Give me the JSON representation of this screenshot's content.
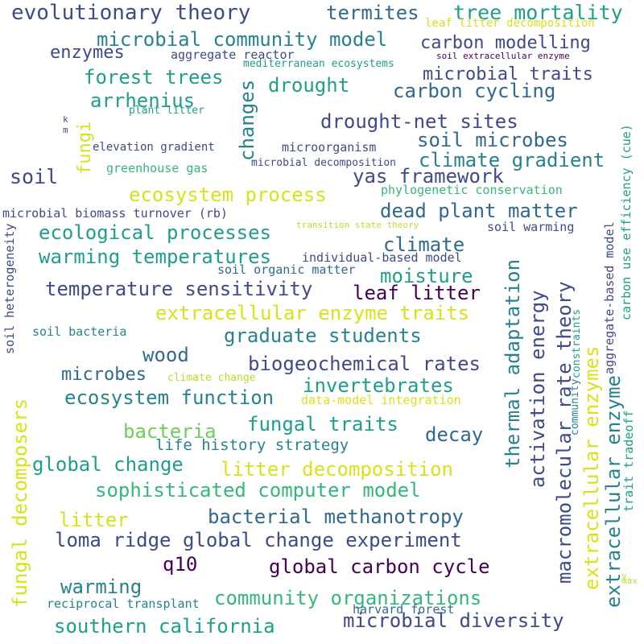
{
  "palette": {
    "background": "#ffffff",
    "dark_purple": "#440154",
    "indigo": "#3e4a89",
    "blue": "#31688e",
    "teal": "#26828e",
    "green_teal": "#1f9e89",
    "green": "#35b779",
    "light_green": "#6ece58",
    "yellow_green": "#b5de2b",
    "yellow": "#d8e219"
  },
  "words": [
    "evolutionary theory",
    "termites",
    "tree mortality",
    "leaf litter decomposition",
    "microbial community model",
    "carbon modelling",
    "enzymes",
    "aggregate reactor",
    "soil extracellular enzyme",
    "mediterranean ecosystems",
    "forest trees",
    "microbial traits",
    "drought",
    "arrhenius",
    "carbon cycling",
    "plant litter",
    "k",
    "m",
    "drought-net sites",
    "changes",
    "fungi",
    "soil microbes",
    "elevation gradient",
    "microorganism",
    "climate gradient",
    "greenhouse gas",
    "microbial decomposition",
    "soil",
    "yas framework",
    "ecosystem process",
    "phylogenetic conservation",
    "dead plant matter",
    "microbial biomass turnover (rb)",
    "transition state theory",
    "soil warming",
    "ecological processes",
    "climate",
    "warming temperatures",
    "individual-based model",
    "soil organic matter",
    "moisture",
    "temperature sensitivity",
    "leaf litter",
    "extracellular enzyme traits",
    "soil bacteria",
    "graduate students",
    "wood",
    "biogeochemical rates",
    "microbes",
    "climate change",
    "invertebrates",
    "ecosystem function",
    "data-model integration",
    "fungal traits",
    "bacteria",
    "decay",
    "life history strategy",
    "global change",
    "litter decomposition",
    "sophisticated computer model",
    "litter",
    "bacterial methanotropy",
    "loma ridge global change experiment",
    "q10",
    "global carbon cycle",
    "warming",
    "community organizations",
    "reciprocal transplant",
    "southern california",
    "microbial diversity",
    "harvard forest",
    "soil heterogeneity",
    "fungal decomposers",
    "thermal adaptation",
    "activation energy",
    "macromolecular rate theory",
    "extracellular enzymes",
    "extracellular enzyme",
    "aggregate-based model",
    "community",
    "constraints",
    "carbon use efficiency (cue)",
    "trait tradeoff",
    "v",
    "max"
  ]
}
